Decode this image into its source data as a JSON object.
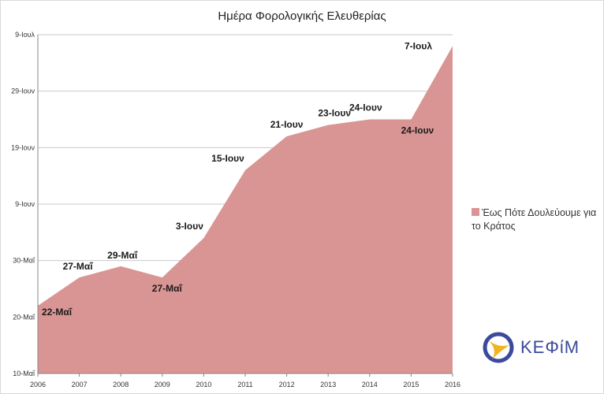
{
  "chart_data": {
    "type": "area",
    "title": "Ημέρα Φορολογικής Ελευθερίας",
    "x": [
      "2006",
      "2007",
      "2008",
      "2009",
      "2010",
      "2011",
      "2012",
      "2013",
      "2014",
      "2015",
      "2016"
    ],
    "series": [
      {
        "name": "Έως Πότε Δουλεύουμε για το Κράτος",
        "values": [
          22,
          27,
          29,
          27,
          34,
          46,
          52,
          54,
          55,
          55,
          68
        ],
        "labels": [
          "22-Μαΐ",
          "27-Μαΐ",
          "29-Μαΐ",
          "27-Μαΐ",
          "3-Ιουν",
          "15-Ιουν",
          "21-Ιουν",
          "23-Ιουν",
          "24-Ιουν",
          "24-Ιουν",
          "7-Ιουλ"
        ]
      }
    ],
    "y_ticks": [
      {
        "value": 10,
        "label": "10-Μαΐ"
      },
      {
        "value": 20,
        "label": "20-Μαΐ"
      },
      {
        "value": 30,
        "label": "30-Μαΐ"
      },
      {
        "value": 40,
        "label": "9-Ιουν"
      },
      {
        "value": 50,
        "label": "19-Ιουν"
      },
      {
        "value": 60,
        "label": "29-Ιουν"
      },
      {
        "value": 70,
        "label": "9-Ιουλ"
      }
    ],
    "y_unit": "days since 1 May",
    "ylim": [
      10,
      70
    ],
    "grid": true,
    "legend_position": "right",
    "colors": {
      "area": "#d99594",
      "grid": "#c8c8c8",
      "axis": "#888888"
    }
  },
  "legend": {
    "label": "Έως Πότε Δουλεύουμε για το Κράτος"
  },
  "logo": {
    "text": "ΚΕΦίΜ",
    "color": "#3b4a9a",
    "accent": "#f2b41e"
  }
}
